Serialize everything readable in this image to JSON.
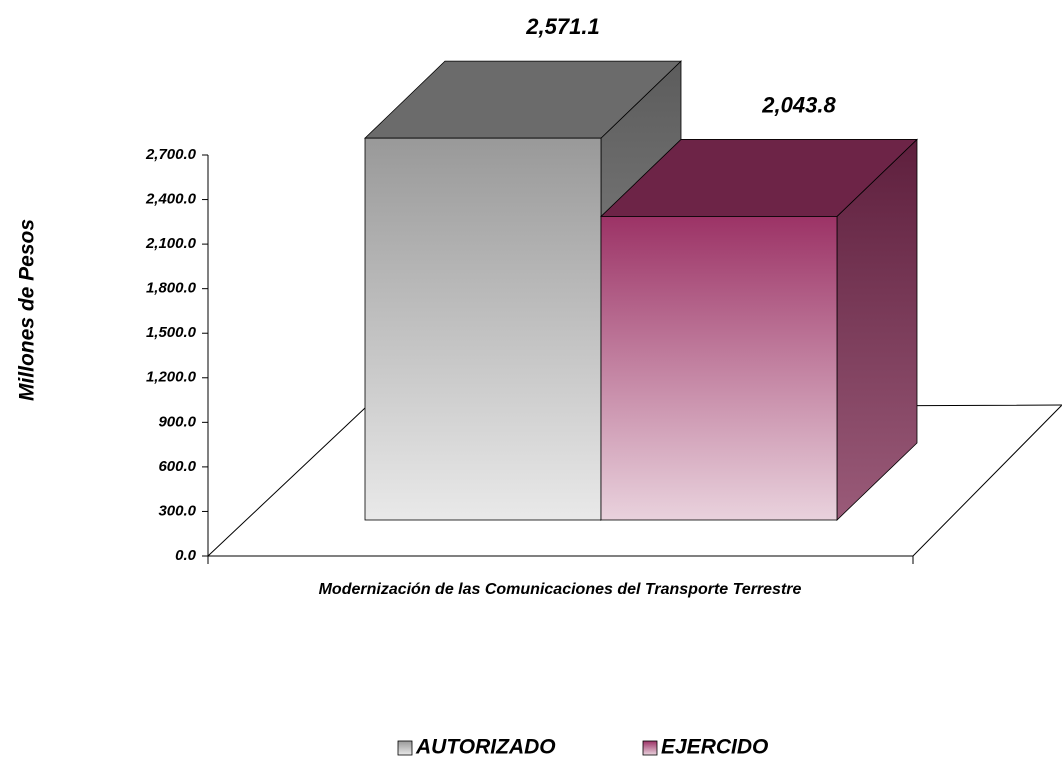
{
  "chart_data": {
    "type": "bar3d",
    "ylabel": "Millones de Pesos",
    "categories": [
      "Modernización de las Comunicaciones del Transporte Terrestre"
    ],
    "series": [
      {
        "name": "AUTORIZADO",
        "color": "#999999",
        "values": [
          2571.1
        ],
        "value_labels": [
          "2,571.1"
        ]
      },
      {
        "name": "EJERCIDO",
        "color": "#9c3366",
        "values": [
          2043.8
        ],
        "value_labels": [
          "2,043.8"
        ]
      }
    ],
    "ylim": [
      0,
      2700
    ],
    "yticks": [
      {
        "value": 0,
        "label": "0.0"
      },
      {
        "value": 300,
        "label": "300.0"
      },
      {
        "value": 600,
        "label": "600.0"
      },
      {
        "value": 900,
        "label": "900.0"
      },
      {
        "value": 1200,
        "label": "1,200.0"
      },
      {
        "value": 1500,
        "label": "1,500.0"
      },
      {
        "value": 1800,
        "label": "1,800.0"
      },
      {
        "value": 2100,
        "label": "2,100.0"
      },
      {
        "value": 2400,
        "label": "2,400.0"
      },
      {
        "value": 2700,
        "label": "2,700.0"
      }
    ],
    "legend": "bottom"
  }
}
